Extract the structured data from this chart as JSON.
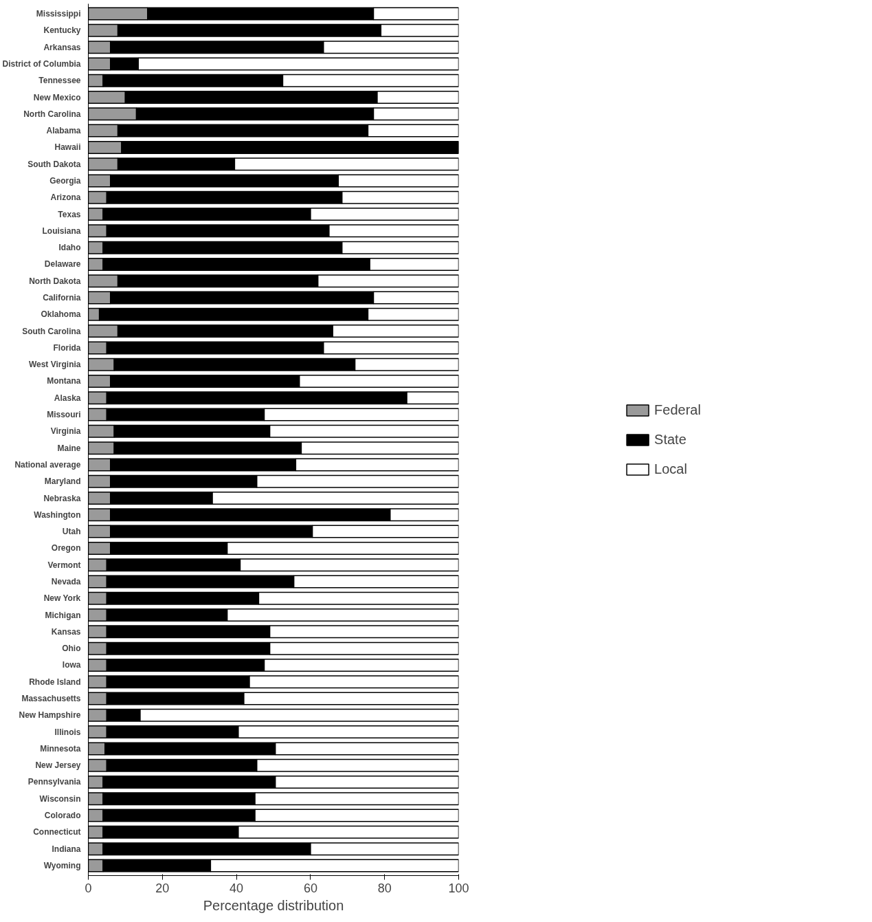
{
  "chart_data": {
    "type": "bar",
    "orientation": "horizontal",
    "stacked": true,
    "xlabel": "Percentage distribution",
    "categories": [
      "Mississippi",
      "Kentucky",
      "Arkansas",
      "District of Columbia",
      "Tennessee",
      "New Mexico",
      "North Carolina",
      "Alabama",
      "Hawaii",
      "South Dakota",
      "Georgia",
      "Arizona",
      "Texas",
      "Louisiana",
      "Idaho",
      "Delaware",
      "North Dakota",
      "California",
      "Oklahoma",
      "South Carolina",
      "Florida",
      "West Virginia",
      "Montana",
      "Alaska",
      "Missouri",
      "Virginia",
      "Maine",
      "National average",
      "Maryland",
      "Nebraska",
      "Washington",
      "Utah",
      "Oregon",
      "Vermont",
      "Nevada",
      "New York",
      "Michigan",
      "Kansas",
      "Ohio",
      "Iowa",
      "Rhode Island",
      "Massachusetts",
      "New Hampshire",
      "Illinois",
      "Minnesota",
      "New Jersey",
      "Pennsylvania",
      "Wisconsin",
      "Colorado",
      "Connecticut",
      "Indiana",
      "Wyoming"
    ],
    "series": [
      {
        "name": "Federal",
        "color": "#9a9a9a",
        "values": [
          16,
          8,
          6,
          6,
          4,
          10,
          13,
          8,
          9,
          8,
          6,
          5,
          4,
          5,
          4,
          4,
          8,
          6,
          3,
          8,
          5,
          7,
          6,
          5,
          5,
          7,
          7,
          6,
          6,
          6,
          6,
          6,
          6,
          5,
          5,
          5,
          5,
          5,
          5,
          5,
          5,
          5,
          5,
          5,
          4.5,
          5,
          4,
          4,
          4,
          4,
          4,
          4
        ]
      },
      {
        "name": "State",
        "color": "#000000",
        "values": [
          61,
          71,
          57.5,
          7.5,
          48.5,
          68,
          64,
          67.5,
          91,
          31.5,
          61.5,
          63.5,
          56,
          60,
          64.5,
          72,
          54,
          71,
          72.5,
          58,
          58.5,
          65,
          51,
          81,
          42.5,
          42,
          50.5,
          50,
          39.5,
          27.5,
          75.5,
          54.5,
          31.5,
          36,
          50.5,
          41,
          32.5,
          44,
          44,
          42.5,
          38.5,
          37,
          9,
          35.5,
          46,
          40.5,
          46.5,
          41,
          41,
          36.5,
          56,
          29
        ]
      },
      {
        "name": "Local",
        "color": "#ffffff",
        "values": [
          23,
          21,
          36.5,
          86.5,
          47.5,
          22,
          23,
          24.5,
          0,
          60.5,
          32.5,
          31.5,
          40,
          35,
          31.5,
          24,
          38,
          23,
          24.5,
          34,
          36.5,
          28,
          43,
          14,
          52.5,
          51,
          42.5,
          44,
          54.5,
          66.5,
          18.5,
          39.5,
          62.5,
          59,
          44.5,
          54,
          62.5,
          51,
          51,
          52.5,
          56.5,
          58,
          86,
          59.5,
          49.5,
          54.5,
          49.5,
          55,
          55,
          59.5,
          40,
          67
        ]
      }
    ],
    "xlim": [
      0,
      100
    ],
    "xticks": [
      0,
      20,
      40,
      60,
      80,
      100
    ],
    "legend": "right",
    "grid": false
  }
}
